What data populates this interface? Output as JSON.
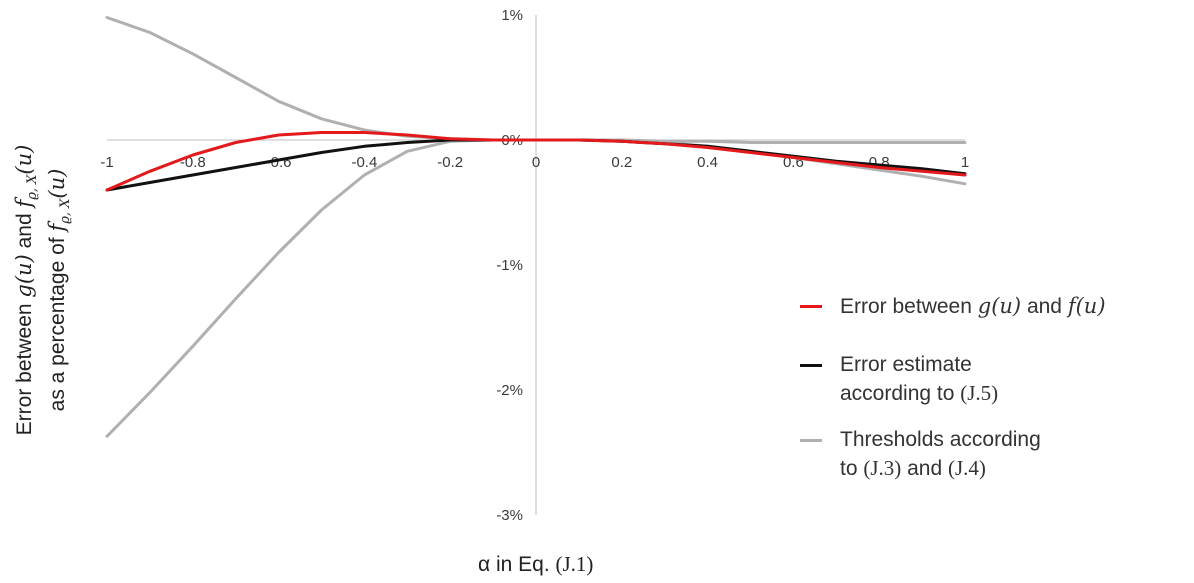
{
  "chart_data": {
    "type": "line",
    "xlabel": "α in Eq. (J.1)",
    "ylabel_line1": "Error between g(u) and f_{ϱ,X}(u)",
    "ylabel_line2": "as a percentage of f_{ϱ,X}(u)",
    "x_ticks": [
      "-1",
      "-0.8",
      "-0.6",
      "-0.4",
      "-0.2",
      "0",
      "0.2",
      "0.4",
      "0.6",
      "0.8",
      "1"
    ],
    "y_ticks": [
      "1%",
      "0%",
      "-1%",
      "-2%",
      "-3%"
    ],
    "xlim": [
      -1,
      1
    ],
    "ylim": [
      -3,
      1
    ],
    "grid": false,
    "legend_position": "right",
    "series": [
      {
        "name": "Error between g(u) and f(u)",
        "color": "#e3191b",
        "x": [
          -1,
          -0.9,
          -0.8,
          -0.7,
          -0.6,
          -0.5,
          -0.4,
          -0.3,
          -0.2,
          -0.1,
          0,
          0.1,
          0.2,
          0.3,
          0.4,
          0.5,
          0.6,
          0.7,
          0.8,
          0.9,
          1
        ],
        "y": [
          -0.4,
          -0.25,
          -0.12,
          -0.02,
          0.04,
          0.06,
          0.06,
          0.04,
          0.01,
          0.0,
          0.0,
          0.0,
          -0.01,
          -0.03,
          -0.06,
          -0.1,
          -0.14,
          -0.18,
          -0.22,
          -0.25,
          -0.28
        ]
      },
      {
        "name": "Error estimate according to (J.5)",
        "color": "#111111",
        "x": [
          -1,
          -0.9,
          -0.8,
          -0.7,
          -0.6,
          -0.5,
          -0.4,
          -0.3,
          -0.2,
          -0.1,
          0,
          0.1,
          0.2,
          0.3,
          0.4,
          0.5,
          0.6,
          0.7,
          0.8,
          0.9,
          1
        ],
        "y": [
          -0.4,
          -0.34,
          -0.28,
          -0.22,
          -0.16,
          -0.1,
          -0.05,
          -0.02,
          0.0,
          0.0,
          0.0,
          0.0,
          -0.01,
          -0.03,
          -0.05,
          -0.09,
          -0.13,
          -0.17,
          -0.2,
          -0.23,
          -0.27
        ]
      },
      {
        "name": "Thresholds according to (J.3) and (J.4)",
        "color": "#b0b0b0",
        "x": [
          -1,
          -0.9,
          -0.8,
          -0.7,
          -0.6,
          -0.5,
          -0.4,
          -0.3,
          -0.2,
          -0.1,
          0,
          0.1,
          0.2,
          0.3,
          0.4,
          0.5,
          0.6,
          0.7,
          0.8,
          0.9,
          1
        ],
        "y": [
          0.98,
          0.86,
          0.69,
          0.5,
          0.31,
          0.17,
          0.08,
          0.03,
          0.01,
          0.0,
          0.0,
          0.0,
          -0.01,
          -0.02,
          -0.05,
          -0.09,
          -0.14,
          -0.19,
          -0.24,
          -0.29,
          -0.35
        ]
      },
      {
        "name": "Thresholds lower",
        "color": "#b0b0b0",
        "x": [
          -1,
          -0.9,
          -0.8,
          -0.7,
          -0.6,
          -0.5,
          -0.4,
          -0.3,
          -0.2,
          -0.1,
          0,
          0.1,
          0.2,
          0.3,
          0.4,
          0.5,
          0.6,
          0.7,
          0.8,
          0.9,
          1
        ],
        "y": [
          -2.37,
          -2.02,
          -1.65,
          -1.27,
          -0.9,
          -0.56,
          -0.28,
          -0.09,
          -0.01,
          0.0,
          0.0,
          0.0,
          0.0,
          -0.01,
          -0.01,
          -0.02,
          -0.02,
          -0.02,
          -0.02,
          -0.02,
          -0.02
        ]
      }
    ]
  },
  "legend": {
    "item1_prefix": "Error between ",
    "item1_g": "g",
    "item1_u1": "(u)",
    "item1_and": " and ",
    "item1_f": "f",
    "item1_u2": "(u)",
    "item2_line1": "Error estimate",
    "item2_line2": "according to ",
    "item2_ref": "(J.5)",
    "item3_line1": "Thresholds according",
    "item3_line2": "to ",
    "item3_ref1": "(J.3)",
    "item3_and": " and ",
    "item3_ref2": "(J.4)"
  },
  "labels": {
    "x_prefix": "α in Eq. ",
    "x_ref": "(J.1)",
    "y1_a": "Error between ",
    "y1_g": "g(u)",
    "y1_and": " and ",
    "y1_f": "f",
    "y1_sub": "ϱ, X",
    "y1_u": "(u)",
    "y2_a": "as a percentage of ",
    "y2_f": "f",
    "y2_sub": "ϱ, X",
    "y2_u": "(u)"
  }
}
